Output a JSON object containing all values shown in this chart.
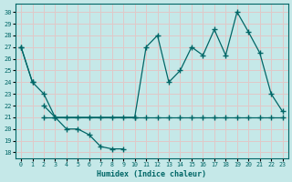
{
  "xlabel": "Humidex (Indice chaleur)",
  "bg_color": "#c5e8e8",
  "grid_color": "#e0c8c8",
  "line_color": "#006666",
  "xlim": [
    -0.5,
    23.5
  ],
  "ylim": [
    17.5,
    30.7
  ],
  "xticks": [
    0,
    1,
    2,
    3,
    4,
    5,
    6,
    7,
    8,
    9,
    10,
    11,
    12,
    13,
    14,
    15,
    16,
    17,
    18,
    19,
    20,
    21,
    22,
    23
  ],
  "yticks": [
    18,
    19,
    20,
    21,
    22,
    23,
    24,
    25,
    26,
    27,
    28,
    29,
    30
  ],
  "series_A": {
    "x": [
      0,
      1
    ],
    "y": [
      27,
      24
    ]
  },
  "series_B": {
    "x": [
      2,
      3,
      4,
      5,
      6,
      7,
      8,
      9
    ],
    "y": [
      22,
      21,
      20,
      20,
      19.5,
      18.5,
      18.3,
      18.3
    ]
  },
  "series_C": {
    "x": [
      2,
      3,
      4,
      5,
      6,
      7,
      8,
      9,
      10,
      11,
      12,
      13,
      14,
      15,
      16,
      17,
      18,
      19,
      20,
      21,
      22,
      23
    ],
    "y": [
      21,
      21,
      21,
      21,
      21,
      21,
      21,
      21,
      21,
      21,
      21,
      21,
      21,
      21,
      21,
      21,
      21,
      21,
      21,
      21,
      21,
      21
    ]
  },
  "series_D": {
    "x": [
      0,
      1,
      2,
      3,
      10,
      11,
      12,
      13,
      14,
      15,
      16,
      17,
      18,
      19,
      20,
      21,
      22,
      23
    ],
    "y": [
      27,
      24,
      23,
      21,
      21,
      27,
      28,
      24,
      25,
      27,
      26.3,
      28.5,
      26.3,
      30,
      28.3,
      26.5,
      23,
      21.5
    ]
  }
}
